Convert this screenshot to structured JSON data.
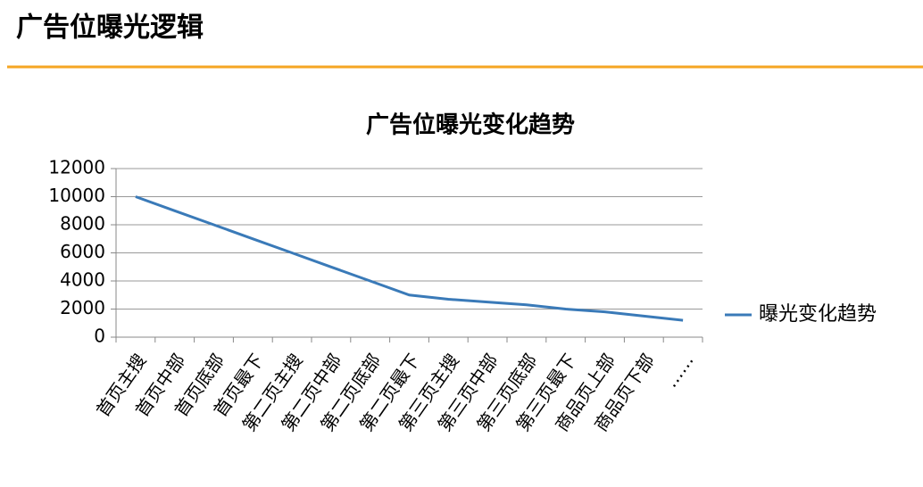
{
  "header": {
    "title": "广告位曝光逻辑"
  },
  "chart_data": {
    "type": "line",
    "title": "广告位曝光变化趋势",
    "categories": [
      "首页主搜",
      "首页中部",
      "首页底部",
      "首页最下",
      "第二页主搜",
      "第二页中部",
      "第二页底部",
      "第二页最下",
      "第三页主搜",
      "第三页中部",
      "第三页底部",
      "第三页最下",
      "商品页上部",
      "商品页下部",
      "……"
    ],
    "series": [
      {
        "name": "曝光变化趋势",
        "color": "#3a7ab8",
        "values": [
          10000,
          9000,
          8000,
          7000,
          6000,
          5000,
          4000,
          3000,
          2700,
          2500,
          2300,
          2000,
          1800,
          1500,
          1200
        ]
      }
    ],
    "ylim": [
      0,
      12000
    ],
    "yticks": [
      0,
      2000,
      4000,
      6000,
      8000,
      10000,
      12000
    ],
    "grid": true,
    "legend": "right"
  }
}
